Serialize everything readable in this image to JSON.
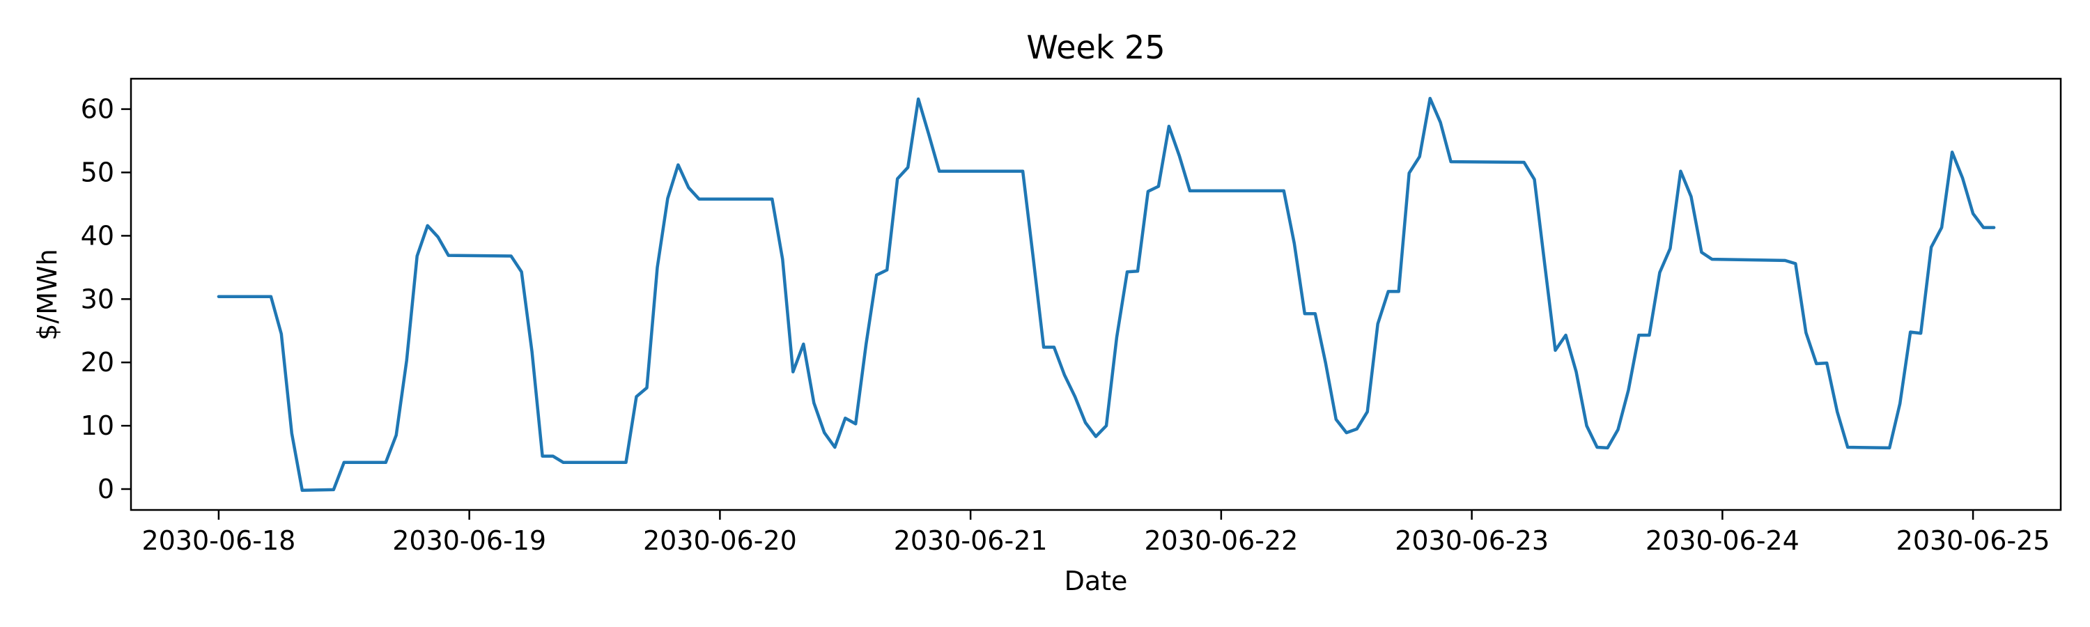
{
  "chart_data": {
    "type": "line",
    "title": "Week 25",
    "xlabel": "Date",
    "ylabel": "$/MWh",
    "xlim": [
      "2030-06-17T15:36",
      "2030-06-25T08:24"
    ],
    "ylim": [
      -3.3,
      64.8
    ],
    "x_ticks": [
      "2030-06-18",
      "2030-06-19",
      "2030-06-20",
      "2030-06-21",
      "2030-06-22",
      "2030-06-23",
      "2030-06-24",
      "2030-06-25"
    ],
    "y_ticks": [
      0,
      10,
      20,
      30,
      40,
      50,
      60
    ],
    "grid": false,
    "legend": "none",
    "series": [
      {
        "color": "#1f77b4",
        "points": [
          [
            "2030-06-18T00:00",
            30.4
          ],
          [
            "2030-06-18T05:00",
            30.4
          ],
          [
            "2030-06-18T06:00",
            24.5
          ],
          [
            "2030-06-18T07:00",
            8.8
          ],
          [
            "2030-06-18T08:00",
            -0.2
          ],
          [
            "2030-06-18T11:00",
            -0.1
          ],
          [
            "2030-06-18T12:00",
            4.2
          ],
          [
            "2030-06-18T16:00",
            4.2
          ],
          [
            "2030-06-18T17:00",
            8.5
          ],
          [
            "2030-06-18T18:00",
            20.3
          ],
          [
            "2030-06-18T19:00",
            36.8
          ],
          [
            "2030-06-18T20:00",
            41.6
          ],
          [
            "2030-06-18T21:00",
            39.8
          ],
          [
            "2030-06-18T22:00",
            36.9
          ],
          [
            "2030-06-19T04:00",
            36.8
          ],
          [
            "2030-06-19T05:00",
            34.3
          ],
          [
            "2030-06-19T06:00",
            21.7
          ],
          [
            "2030-06-19T07:00",
            5.2
          ],
          [
            "2030-06-19T08:00",
            5.2
          ],
          [
            "2030-06-19T09:00",
            4.2
          ],
          [
            "2030-06-19T15:00",
            4.2
          ],
          [
            "2030-06-19T16:00",
            14.6
          ],
          [
            "2030-06-19T17:00",
            16.0
          ],
          [
            "2030-06-19T18:00",
            35.0
          ],
          [
            "2030-06-19T19:00",
            45.9
          ],
          [
            "2030-06-19T20:00",
            51.2
          ],
          [
            "2030-06-19T21:00",
            47.6
          ],
          [
            "2030-06-19T22:00",
            45.8
          ],
          [
            "2030-06-20T04:00",
            45.8
          ],
          [
            "2030-06-20T05:00",
            45.8
          ],
          [
            "2030-06-20T06:00",
            36.3
          ],
          [
            "2030-06-20T07:00",
            18.5
          ],
          [
            "2030-06-20T08:00",
            22.9
          ],
          [
            "2030-06-20T09:00",
            13.6
          ],
          [
            "2030-06-20T10:00",
            8.9
          ],
          [
            "2030-06-20T11:00",
            6.6
          ],
          [
            "2030-06-20T12:00",
            11.2
          ],
          [
            "2030-06-20T13:00",
            10.3
          ],
          [
            "2030-06-20T14:00",
            22.9
          ],
          [
            "2030-06-20T15:00",
            33.8
          ],
          [
            "2030-06-20T16:00",
            34.6
          ],
          [
            "2030-06-20T17:00",
            49.0
          ],
          [
            "2030-06-20T18:00",
            50.8
          ],
          [
            "2030-06-20T19:00",
            61.6
          ],
          [
            "2030-06-20T20:00",
            56.0
          ],
          [
            "2030-06-20T21:00",
            50.2
          ],
          [
            "2030-06-21T05:00",
            50.2
          ],
          [
            "2030-06-21T06:00",
            36.5
          ],
          [
            "2030-06-21T07:00",
            22.4
          ],
          [
            "2030-06-21T08:00",
            22.4
          ],
          [
            "2030-06-21T09:00",
            18.0
          ],
          [
            "2030-06-21T10:00",
            14.6
          ],
          [
            "2030-06-21T11:00",
            10.5
          ],
          [
            "2030-06-21T12:00",
            8.3
          ],
          [
            "2030-06-21T13:00",
            10.0
          ],
          [
            "2030-06-21T14:00",
            24.0
          ],
          [
            "2030-06-21T15:00",
            34.3
          ],
          [
            "2030-06-21T16:00",
            34.4
          ],
          [
            "2030-06-21T17:00",
            47.0
          ],
          [
            "2030-06-21T18:00",
            47.8
          ],
          [
            "2030-06-21T19:00",
            57.3
          ],
          [
            "2030-06-21T20:00",
            52.6
          ],
          [
            "2030-06-21T21:00",
            47.1
          ],
          [
            "2030-06-22T06:00",
            47.1
          ],
          [
            "2030-06-22T07:00",
            38.8
          ],
          [
            "2030-06-22T08:00",
            27.7
          ],
          [
            "2030-06-22T09:00",
            27.7
          ],
          [
            "2030-06-22T10:00",
            19.9
          ],
          [
            "2030-06-22T11:00",
            11.0
          ],
          [
            "2030-06-22T12:00",
            8.9
          ],
          [
            "2030-06-22T13:00",
            9.5
          ],
          [
            "2030-06-22T14:00",
            12.2
          ],
          [
            "2030-06-22T15:00",
            26.1
          ],
          [
            "2030-06-22T16:00",
            31.2
          ],
          [
            "2030-06-22T17:00",
            31.2
          ],
          [
            "2030-06-22T18:00",
            49.9
          ],
          [
            "2030-06-22T19:00",
            52.5
          ],
          [
            "2030-06-22T20:00",
            61.7
          ],
          [
            "2030-06-22T21:00",
            57.9
          ],
          [
            "2030-06-22T22:00",
            51.7
          ],
          [
            "2030-06-23T05:00",
            51.6
          ],
          [
            "2030-06-23T06:00",
            48.9
          ],
          [
            "2030-06-23T07:00",
            35.3
          ],
          [
            "2030-06-23T08:00",
            21.9
          ],
          [
            "2030-06-23T09:00",
            24.3
          ],
          [
            "2030-06-23T10:00",
            18.5
          ],
          [
            "2030-06-23T11:00",
            10.0
          ],
          [
            "2030-06-23T12:00",
            6.6
          ],
          [
            "2030-06-23T13:00",
            6.5
          ],
          [
            "2030-06-23T14:00",
            9.4
          ],
          [
            "2030-06-23T15:00",
            15.6
          ],
          [
            "2030-06-23T16:00",
            24.3
          ],
          [
            "2030-06-23T17:00",
            24.3
          ],
          [
            "2030-06-23T18:00",
            34.2
          ],
          [
            "2030-06-23T19:00",
            38.0
          ],
          [
            "2030-06-23T20:00",
            50.2
          ],
          [
            "2030-06-23T21:00",
            46.2
          ],
          [
            "2030-06-23T22:00",
            37.4
          ],
          [
            "2030-06-23T23:00",
            36.3
          ],
          [
            "2030-06-24T06:00",
            36.1
          ],
          [
            "2030-06-24T07:00",
            35.6
          ],
          [
            "2030-06-24T08:00",
            24.7
          ],
          [
            "2030-06-24T09:00",
            19.8
          ],
          [
            "2030-06-24T10:00",
            19.9
          ],
          [
            "2030-06-24T11:00",
            12.2
          ],
          [
            "2030-06-24T12:00",
            6.6
          ],
          [
            "2030-06-24T16:00",
            6.5
          ],
          [
            "2030-06-24T17:00",
            13.5
          ],
          [
            "2030-06-24T18:00",
            24.8
          ],
          [
            "2030-06-24T19:00",
            24.6
          ],
          [
            "2030-06-24T20:00",
            38.2
          ],
          [
            "2030-06-24T21:00",
            41.3
          ],
          [
            "2030-06-24T22:00",
            53.2
          ],
          [
            "2030-06-24T23:00",
            49.1
          ],
          [
            "2030-06-25T00:00",
            43.5
          ],
          [
            "2030-06-25T01:00",
            41.3
          ],
          [
            "2030-06-25T02:00",
            41.3
          ]
        ]
      }
    ]
  }
}
